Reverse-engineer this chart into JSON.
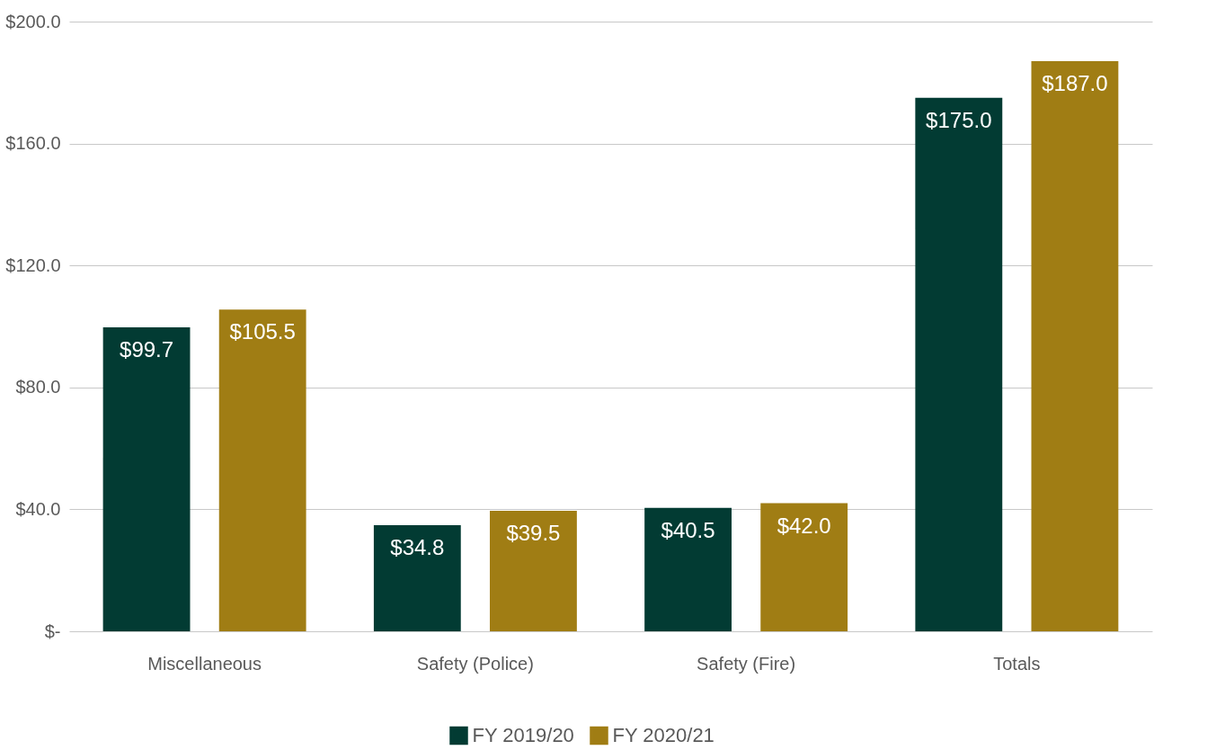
{
  "chart_data": {
    "type": "bar",
    "categories": [
      "Miscellaneous",
      "Safety (Police)",
      "Safety (Fire)",
      "Totals"
    ],
    "series": [
      {
        "name": "FY 2019/20",
        "color": "#023b33",
        "values": [
          99.7,
          34.8,
          40.5,
          175.0
        ],
        "value_labels": [
          "$99.7",
          "$34.8",
          "$40.5",
          "$175.0"
        ]
      },
      {
        "name": "FY 2020/21",
        "color": "#a07d14",
        "values": [
          105.5,
          39.5,
          42.0,
          187.0
        ],
        "value_labels": [
          "$105.5",
          "$39.5",
          "$42.0",
          "$187.0"
        ]
      }
    ],
    "ylim": [
      0,
      200
    ],
    "yticks": [
      {
        "value": 0,
        "label": "$-"
      },
      {
        "value": 40,
        "label": "$40.0"
      },
      {
        "value": 80,
        "label": "$80.0"
      },
      {
        "value": 120,
        "label": "$120.0"
      },
      {
        "value": 160,
        "label": "$160.0"
      },
      {
        "value": 200,
        "label": "$200.0"
      }
    ],
    "grid": "y",
    "legend": "bottom"
  }
}
